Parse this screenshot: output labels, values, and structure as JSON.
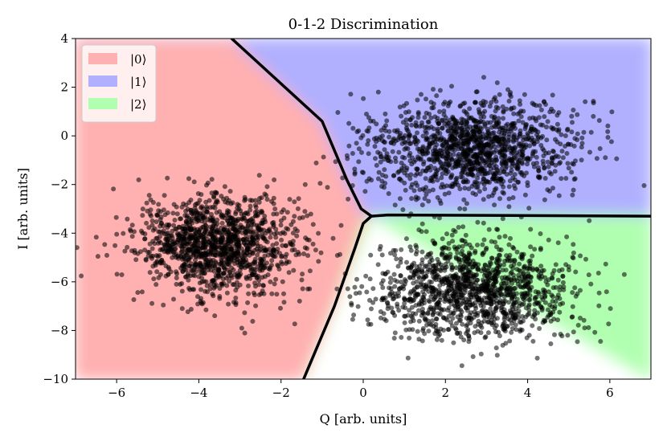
{
  "chart_data": {
    "type": "scatter",
    "title": "0-1-2 Discrimination",
    "xlabel": "Q [arb. units]",
    "ylabel": "I [arb. units]",
    "xlim": [
      -7,
      7
    ],
    "ylim": [
      -10,
      4
    ],
    "xticks": [
      -6,
      -4,
      -2,
      0,
      2,
      4,
      6
    ],
    "yticks": [
      -10,
      -8,
      -6,
      -4,
      -2,
      0,
      2,
      4
    ],
    "xtick_labels": [
      "−6",
      "−4",
      "−2",
      "0",
      "2",
      "4",
      "6"
    ],
    "ytick_labels": [
      "−10",
      "−8",
      "−6",
      "−4",
      "−2",
      "0",
      "2",
      "4"
    ],
    "legend_position": "top-left",
    "series": [
      {
        "name": "|0⟩",
        "region_color": "#ffb0b0",
        "center": [
          -3.5,
          -4.5
        ],
        "std": [
          1.0,
          1.0
        ],
        "marker_color": "#000000"
      },
      {
        "name": "|1⟩",
        "region_color": "#b0b0ff",
        "center": [
          2.7,
          -0.5
        ],
        "std": [
          1.2,
          1.0
        ],
        "marker_color": "#000000"
      },
      {
        "name": "|2⟩",
        "region_color": "#b0ffb0",
        "center": [
          2.7,
          -6.3
        ],
        "std": [
          1.2,
          1.0
        ],
        "marker_color": "#000000"
      }
    ],
    "decision_boundaries": [
      {
        "name": "boundary-0-1",
        "points": [
          [
            -3.2,
            4
          ],
          [
            -1.0,
            0.6
          ],
          [
            -0.4,
            -1.8
          ],
          [
            -0.05,
            -3.0
          ],
          [
            0.2,
            -3.3
          ]
        ]
      },
      {
        "name": "boundary-0-2",
        "points": [
          [
            -1.45,
            -10
          ],
          [
            -0.7,
            -7.0
          ],
          [
            -0.2,
            -4.6
          ],
          [
            0.0,
            -3.6
          ],
          [
            0.2,
            -3.3
          ]
        ]
      },
      {
        "name": "boundary-1-2",
        "points": [
          [
            0.2,
            -3.3
          ],
          [
            0.6,
            -3.25
          ],
          [
            7,
            -3.3
          ]
        ]
      }
    ]
  }
}
